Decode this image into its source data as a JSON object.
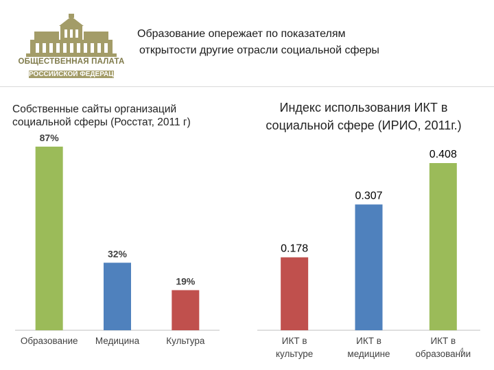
{
  "header": {
    "title_line1": "Образование опережает по показателям",
    "title_line2": "открытости другие отрасли социальной сферы",
    "logo_text_line1": "ОБЩЕСТВЕННАЯ ПАЛАТА",
    "logo_text_line2": "РОССИЙСКОЙ ФЕДЕРАЦИИ",
    "logo_icon": "building-emblem-icon"
  },
  "page_number": "4",
  "colors": {
    "green": "#9bbb59",
    "blue": "#4f81bd",
    "red": "#c0504d",
    "logo": "#a39c68"
  },
  "chart_data": [
    {
      "type": "bar",
      "title": "Собственные сайты организаций социальной сферы (Росстат, 2011 г)",
      "categories": [
        "Образование",
        "Медицина",
        "Культура"
      ],
      "values": [
        87,
        32,
        19
      ],
      "labels": [
        "87%",
        "32%",
        "19%"
      ],
      "colors": [
        "#9bbb59",
        "#4f81bd",
        "#c0504d"
      ],
      "ylim": [
        0,
        100
      ],
      "grid": false
    },
    {
      "type": "bar",
      "title": "Индекс использования ИКТ в социальной сфере (ИРИО, 2011г.)",
      "categories": [
        "ИКТ в культуре",
        "ИКТ в медицине",
        "ИКТ в образовании"
      ],
      "values": [
        0.178,
        0.307,
        0.408
      ],
      "labels": [
        "0.178",
        "0.307",
        "0.408"
      ],
      "colors": [
        "#c0504d",
        "#4f81bd",
        "#9bbb59"
      ],
      "ylim": [
        0,
        0.45
      ],
      "grid": false
    }
  ]
}
